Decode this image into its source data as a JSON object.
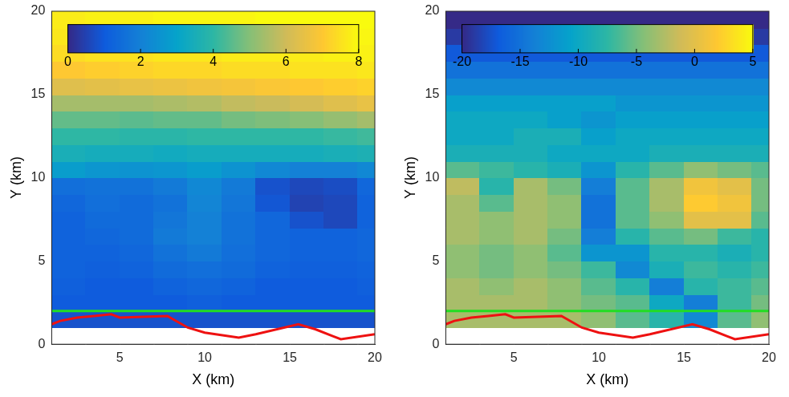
{
  "chart_data": [
    {
      "type": "heatmap",
      "xlabel": "X (km)",
      "ylabel": "Y (km)",
      "xlim": [
        1,
        20
      ],
      "ylim": [
        0,
        20
      ],
      "xticks": [
        5,
        10,
        15,
        20
      ],
      "yticks": [
        0,
        5,
        10,
        15,
        20
      ],
      "grid": false,
      "x_edges": [
        1,
        3,
        5,
        7,
        9,
        11,
        13,
        15,
        17,
        19,
        20
      ],
      "y_edges": [
        0,
        1,
        2,
        3,
        4,
        5,
        6,
        7,
        8,
        9,
        10,
        11,
        12,
        13,
        14,
        15,
        16,
        17,
        18,
        19,
        20
      ],
      "cells": [
        [
          null,
          null,
          null,
          null,
          null,
          null,
          null,
          null,
          null,
          null
        ],
        [
          0.8,
          0.8,
          0.8,
          0.8,
          0.8,
          0.8,
          0.8,
          0.8,
          0.8,
          0.8
        ],
        [
          1,
          1,
          1,
          1,
          1.1,
          1,
          1,
          1,
          1,
          1
        ],
        [
          1.1,
          1,
          1,
          1.2,
          1.3,
          1.2,
          1,
          1,
          1,
          1.1
        ],
        [
          1.2,
          1.1,
          1.2,
          1.4,
          1.5,
          1.4,
          1.2,
          1.1,
          1.1,
          1.2
        ],
        [
          1.2,
          1.2,
          1.3,
          1.6,
          1.8,
          1.5,
          1.3,
          1.2,
          1.2,
          1.3
        ],
        [
          1.2,
          1.3,
          1.4,
          1.8,
          2,
          1.6,
          1.3,
          1.2,
          1.2,
          1.3
        ],
        [
          1.2,
          1.4,
          1.4,
          1.7,
          2,
          1.6,
          1.3,
          0.8,
          0.6,
          1.2
        ],
        [
          1.3,
          1.5,
          1.4,
          1.6,
          2.1,
          1.7,
          0.9,
          0.5,
          0.6,
          1.2
        ],
        [
          1.5,
          1.6,
          1.6,
          1.8,
          2.2,
          1.8,
          0.8,
          0.6,
          0.7,
          1.3
        ],
        [
          2.8,
          2.6,
          2.5,
          2.6,
          2.8,
          2.5,
          2.2,
          2,
          2,
          2.2
        ],
        [
          3.5,
          3.4,
          3.4,
          3.3,
          3.4,
          3.4,
          3.4,
          3.4,
          3.5,
          3.6
        ],
        [
          4,
          4,
          3.9,
          3.9,
          4,
          4,
          4,
          4,
          4.1,
          4.2
        ],
        [
          4.6,
          4.6,
          4.5,
          4.6,
          4.6,
          4.8,
          4.9,
          5,
          5.2,
          5.4
        ],
        [
          5.4,
          5.4,
          5.4,
          5.5,
          5.6,
          5.8,
          5.9,
          6.1,
          6.3,
          6.5
        ],
        [
          6.3,
          6.4,
          6.5,
          6.6,
          6.7,
          6.8,
          6.9,
          7,
          7.1,
          7.2
        ],
        [
          7,
          7.1,
          7.2,
          7.3,
          7.3,
          7.4,
          7.4,
          7.5,
          7.5,
          7.6
        ],
        [
          7.4,
          7.5,
          7.5,
          7.6,
          7.6,
          7.7,
          7.7,
          7.7,
          7.8,
          7.8
        ],
        [
          7.6,
          7.7,
          7.7,
          7.8,
          7.8,
          7.8,
          7.9,
          7.9,
          7.9,
          7.9
        ],
        [
          7.7,
          7.8,
          7.8,
          7.9,
          7.9,
          7.9,
          8,
          8,
          8,
          8
        ]
      ],
      "colorbar": {
        "range": [
          0,
          8
        ],
        "ticks": [
          0,
          2,
          4,
          6,
          8
        ]
      },
      "series": [
        {
          "type": "line",
          "color": "#22dd22",
          "x": [
            1,
            20
          ],
          "values": [
            2,
            2
          ]
        },
        {
          "type": "line",
          "color": "#ee1111",
          "x": [
            1,
            1.5,
            2.5,
            3.5,
            4.5,
            5,
            7.8,
            9,
            10,
            12,
            13,
            15.5,
            16.5,
            17.5,
            18,
            20
          ],
          "values": [
            1.2,
            1.4,
            1.6,
            1.7,
            1.8,
            1.6,
            1.7,
            1,
            0.7,
            0.4,
            0.6,
            1.2,
            0.9,
            0.5,
            0.3,
            0.6
          ]
        }
      ]
    },
    {
      "type": "heatmap",
      "xlabel": "X (km)",
      "ylabel": "Y (km)",
      "xlim": [
        1,
        20
      ],
      "ylim": [
        0,
        20
      ],
      "xticks": [
        5,
        10,
        15,
        20
      ],
      "yticks": [
        0,
        5,
        10,
        15,
        20
      ],
      "grid": false,
      "x_edges": [
        1,
        3,
        5,
        7,
        9,
        11,
        13,
        15,
        17,
        19,
        20
      ],
      "y_edges": [
        0,
        1,
        2,
        3,
        4,
        5,
        6,
        7,
        8,
        9,
        10,
        11,
        12,
        13,
        14,
        15,
        16,
        17,
        18,
        19,
        20
      ],
      "cells": [
        [
          null,
          null,
          null,
          null,
          null,
          null,
          null,
          null,
          null,
          null
        ],
        [
          -3,
          -3,
          -3,
          -3,
          -4,
          -6,
          -8,
          -13,
          -6,
          -4
        ],
        [
          -3,
          -3,
          -3,
          -4,
          -5,
          -6,
          -10,
          -14,
          -7,
          -5
        ],
        [
          -3,
          -4,
          -3,
          -4,
          -6,
          -8,
          -14,
          -8,
          -7,
          -6
        ],
        [
          -4,
          -5,
          -4,
          -5,
          -7,
          -13,
          -9,
          -7,
          -8,
          -7
        ],
        [
          -4,
          -5,
          -4,
          -6,
          -12,
          -12,
          -8,
          -8,
          -9,
          -8
        ],
        [
          -3,
          -4,
          -3,
          -5,
          -14,
          -8,
          -6,
          -5,
          -7,
          -8
        ],
        [
          -3,
          -4,
          -3,
          -4,
          -15,
          -6,
          -4,
          0,
          0,
          -6
        ],
        [
          -3,
          -6,
          -3,
          -4,
          -15,
          -6,
          -3,
          2,
          1,
          -5
        ],
        [
          -2,
          -8,
          -3,
          -5,
          -14,
          -6,
          -3,
          1,
          0,
          -5
        ],
        [
          -6,
          -7,
          -8,
          -9,
          -12,
          -8,
          -6,
          -4,
          -5,
          -6
        ],
        [
          -9,
          -9,
          -9,
          -10,
          -10,
          -10,
          -9,
          -9,
          -9,
          -9
        ],
        [
          -10,
          -10,
          -9,
          -9,
          -11,
          -10,
          -10,
          -10,
          -10,
          -10
        ],
        [
          -10,
          -10,
          -10,
          -11,
          -12,
          -11,
          -11,
          -11,
          -11,
          -11
        ],
        [
          -11,
          -11,
          -11,
          -11,
          -11,
          -12,
          -12,
          -12,
          -12,
          -12
        ],
        [
          -13,
          -13,
          -13,
          -13,
          -13,
          -13,
          -13,
          -13,
          -13,
          -13
        ],
        [
          -15,
          -15,
          -15,
          -15,
          -15,
          -15,
          -15,
          -15,
          -15,
          -15
        ],
        [
          -17,
          -17,
          -17,
          -17,
          -17,
          -17,
          -17,
          -17,
          -17,
          -17
        ],
        [
          -19,
          -19,
          -19,
          -19,
          -19,
          -19,
          -19,
          -19,
          -19,
          -19
        ],
        [
          -20,
          -20,
          -20,
          -20,
          -20,
          -20,
          -20,
          -20,
          -20,
          -20
        ]
      ],
      "colorbar": {
        "range": [
          -20,
          5
        ],
        "ticks": [
          -20,
          -15,
          -10,
          -5,
          0,
          5
        ]
      },
      "series": [
        {
          "type": "line",
          "color": "#22dd22",
          "x": [
            1,
            20
          ],
          "values": [
            2,
            2
          ]
        },
        {
          "type": "line",
          "color": "#ee1111",
          "x": [
            1,
            1.5,
            2.5,
            3.5,
            4.5,
            5,
            7.8,
            9,
            10,
            12,
            13,
            15.5,
            16.5,
            17.5,
            18,
            20
          ],
          "values": [
            1.2,
            1.4,
            1.6,
            1.7,
            1.8,
            1.6,
            1.7,
            1,
            0.7,
            0.4,
            0.6,
            1.2,
            0.9,
            0.5,
            0.3,
            0.6
          ]
        }
      ]
    }
  ]
}
